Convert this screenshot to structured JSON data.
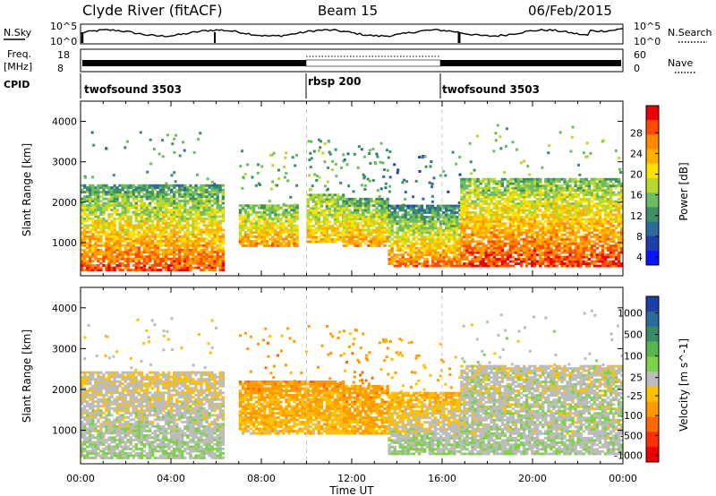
{
  "header": {
    "station": "Clyde River (fitACF)",
    "beam": "Beam 15",
    "date": "06/Feb/2015"
  },
  "left_labels": {
    "nsky": "N.Sky",
    "freq_a": "Freq.",
    "freq_b": "[MHz]",
    "cpid": "CPID"
  },
  "right_labels": {
    "nsearch": "N.Search",
    "nave": "Nave"
  },
  "noise_axis": {
    "left_ticks": [
      "10^5",
      "10^0"
    ],
    "right_ticks": [
      "10^5",
      "10^0"
    ]
  },
  "freq_axis": {
    "left_ticks": [
      "18",
      "8"
    ],
    "right_ticks": [
      "60",
      "0"
    ]
  },
  "cpid_segments": [
    {
      "label": "twofsound 3503",
      "start_h": 0
    },
    {
      "label": "rbsp 200",
      "start_h": 10
    },
    {
      "label": "twofsound 3503",
      "start_h": 16
    }
  ],
  "power_colorbar": {
    "label": "Power [dB]",
    "ticks": [
      "28",
      "24",
      "20",
      "16",
      "12",
      "8",
      "4"
    ],
    "colors": [
      "#ee0000",
      "#ff4a00",
      "#ff8a00",
      "#ffb100",
      "#ffe000",
      "#b8d830",
      "#6cbd62",
      "#3f8f62",
      "#2c6c9c",
      "#1f3fa8",
      "#0a14ff"
    ]
  },
  "velocity_colorbar": {
    "label": "Velocity [m s^-1]",
    "ticks": [
      "1000",
      "500",
      "100",
      "25",
      "-25",
      "-100",
      "-500",
      "-1000"
    ],
    "colors": [
      "#1f3fa8",
      "#2c6c9c",
      "#3a8a66",
      "#58b64c",
      "#7fd04a",
      "#bcbcbc",
      "#ffc000",
      "#ff9a00",
      "#ff6a00",
      "#ff3000",
      "#ee0000"
    ]
  },
  "time_ticks": [
    "00:00",
    "04:00",
    "08:00",
    "12:00",
    "16:00",
    "20:00",
    "00:00"
  ],
  "range_ticks": [
    "4000",
    "3000",
    "2000",
    "1000"
  ],
  "y_axis_label": "Slant Range [km]",
  "x_axis_label": "Time UT",
  "chart_data": [
    {
      "type": "heatmap",
      "panel": "power",
      "xlabel": "Time UT",
      "ylabel": "Slant Range [km]",
      "xlim_hours": [
        0,
        24
      ],
      "ylim_km": [
        180,
        4500
      ],
      "clim_db": [
        0,
        31
      ],
      "mode_boundaries_h": [
        10,
        16
      ],
      "data_gaps_h": [
        [
          6.3,
          6.9
        ]
      ],
      "echo_regions": [
        {
          "t0": 0,
          "t1": 6.3,
          "r_low": 300,
          "r_high": 2400,
          "power_low_range": 28,
          "power_high_range": 10
        },
        {
          "t0": 7,
          "t1": 9.6,
          "r_low": 900,
          "r_high": 1900,
          "power_low_range": 24,
          "power_high_range": 12
        },
        {
          "t0": 10,
          "t1": 11.6,
          "r_low": 1000,
          "r_high": 2200,
          "power_low_range": 22,
          "power_high_range": 12
        },
        {
          "t0": 11.6,
          "t1": 13.6,
          "r_low": 900,
          "r_high": 2100,
          "power_low_range": 24,
          "power_high_range": 10
        },
        {
          "t0": 13.6,
          "t1": 16.8,
          "r_low": 400,
          "r_high": 1900,
          "power_low_range": 26,
          "power_high_range": 8
        },
        {
          "t0": 16.8,
          "t1": 24,
          "r_low": 400,
          "r_high": 2600,
          "power_low_range": 29,
          "power_high_range": 12
        }
      ]
    },
    {
      "type": "heatmap",
      "panel": "velocity",
      "xlabel": "Time UT",
      "ylabel": "Slant Range [km]",
      "xlim_hours": [
        0,
        24
      ],
      "ylim_km": [
        180,
        4500
      ],
      "clim_ms": [
        -1000,
        1000
      ],
      "mode_boundaries_h": [
        10,
        16
      ],
      "data_gaps_h": [
        [
          6.3,
          6.9
        ]
      ],
      "echo_regions": [
        {
          "t0": 0,
          "t1": 6.3,
          "r_low": 300,
          "r_high": 2400,
          "velocity_low_range": 100,
          "velocity_high_range": -100
        },
        {
          "t0": 7,
          "t1": 11.6,
          "r_low": 900,
          "r_high": 2200,
          "velocity_low_range": -200,
          "velocity_high_range": -400
        },
        {
          "t0": 11.6,
          "t1": 13.6,
          "r_low": 900,
          "r_high": 2100,
          "velocity_low_range": -300,
          "velocity_high_range": -400
        },
        {
          "t0": 13.6,
          "t1": 16.8,
          "r_low": 400,
          "r_high": 1900,
          "velocity_low_range": 150,
          "velocity_high_range": -300
        },
        {
          "t0": 16.8,
          "t1": 24,
          "r_low": 400,
          "r_high": 2600,
          "velocity_low_range": 60,
          "velocity_high_range": -20
        }
      ]
    }
  ]
}
